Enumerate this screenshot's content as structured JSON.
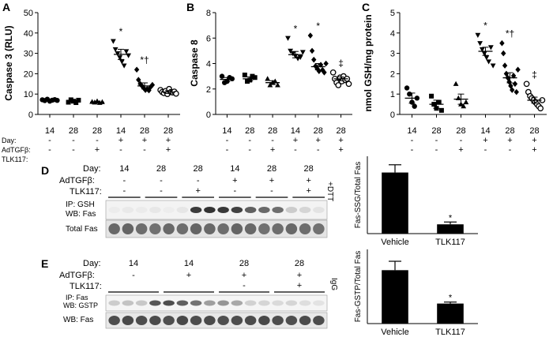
{
  "panels": {
    "A": {
      "letter": "A"
    },
    "B": {
      "letter": "B"
    },
    "C": {
      "letter": "C"
    },
    "D": {
      "letter": "D"
    },
    "E": {
      "letter": "E"
    }
  },
  "design_rows": {
    "day_label": "Day:",
    "adtgf_label": "AdTGFβ:",
    "tlk_label": "TLK117:",
    "days": [
      "14",
      "28",
      "28",
      "14",
      "28",
      "28"
    ],
    "adtgf": [
      "-",
      "-",
      "-",
      "+",
      "+",
      "+"
    ],
    "tlk": [
      "-",
      "-",
      "+",
      "-",
      "-",
      "+"
    ]
  },
  "blot_D": {
    "day_label": "Day:",
    "adtgf_label": "AdTGFβ:",
    "tlk_label": "TLK117:",
    "days": [
      "14",
      "28",
      "28",
      "14",
      "28",
      "28"
    ],
    "adtgf": [
      "-",
      "-",
      "-",
      "+",
      "+",
      "+"
    ],
    "tlk": [
      "-",
      "-",
      "+",
      "-",
      "-",
      "+"
    ],
    "ip_label": "IP: GSH",
    "wb_label": "WB: Fas",
    "total_label": "Total Fas",
    "side_label": "+DTT"
  },
  "blot_E": {
    "day_label": "Day:",
    "adtgf_label": "AdTGFβ:",
    "tlk_label": "TLK117:",
    "days": [
      "14",
      "14",
      "28",
      "28"
    ],
    "adtgf": [
      "-",
      "+",
      "+",
      "+"
    ],
    "tlk": [
      "",
      "",
      "-",
      "+"
    ],
    "ip_label": "IP: Fas",
    "wb_label": "WB: GSTP",
    "wb2_label": "WB: Fas",
    "side_label": "IgG"
  },
  "chart_data": [
    {
      "panel": "A",
      "type": "scatter",
      "ylabel": "Caspase 3 (RLU)",
      "ylim": [
        0,
        50
      ],
      "yticks": [
        "0",
        "10",
        "20",
        "30",
        "40",
        "50"
      ],
      "categories": [
        "14/-/-",
        "28/-/-",
        "28/-/+",
        "14/+/-",
        "28/+/-",
        "28/+/+"
      ],
      "markers": [
        "circle",
        "square",
        "triangle",
        "triangle-down",
        "diamond",
        "circle-open"
      ],
      "means": [
        7,
        6.5,
        6,
        29.5,
        14,
        11
      ],
      "sems": [
        0.5,
        0.6,
        0.5,
        2.5,
        1.5,
        0.7
      ],
      "points": [
        [
          7.2,
          6.8,
          7.5,
          6.5,
          7.0,
          7.3,
          6.9
        ],
        [
          6.0,
          7.2,
          6.5,
          5.8,
          7.0
        ],
        [
          6.2,
          5.9,
          6.5,
          5.7,
          6.1
        ],
        [
          36,
          32,
          30,
          28,
          26,
          24,
          31,
          29
        ],
        [
          22,
          17,
          15,
          14,
          13,
          12,
          12.5,
          11.8,
          13.5,
          14.5
        ],
        [
          12,
          11,
          10.5,
          11.5,
          10,
          12.5,
          11,
          10.8,
          11.2,
          10.2
        ]
      ],
      "annotations": [
        "",
        "",
        "",
        "*",
        "*†",
        ""
      ]
    },
    {
      "panel": "B",
      "type": "scatter",
      "ylabel": "Caspase 8",
      "ylim": [
        0,
        8
      ],
      "yticks": [
        "0",
        "2",
        "4",
        "6",
        "8"
      ],
      "categories": [
        "14/-/-",
        "28/-/-",
        "28/-/+",
        "14/+/-",
        "28/+/-",
        "28/+/+"
      ],
      "markers": [
        "circle",
        "square",
        "triangle",
        "triangle-down",
        "diamond",
        "circle-open"
      ],
      "means": [
        2.75,
        2.8,
        2.5,
        4.7,
        3.75,
        2.8
      ],
      "sems": [
        0.15,
        0.15,
        0.15,
        0.25,
        0.25,
        0.15
      ],
      "points": [
        [
          3.0,
          2.5,
          2.6,
          2.9,
          2.8
        ],
        [
          3.1,
          2.6,
          2.7,
          3.0,
          2.9
        ],
        [
          2.8,
          2.3,
          2.5,
          2.6,
          2.3
        ],
        [
          6.0,
          5.0,
          4.8,
          4.6,
          4.4,
          4.5,
          4.9
        ],
        [
          6.2,
          5.0,
          4.3,
          3.8,
          3.6,
          3.4,
          3.9,
          3.5,
          3.3,
          4.0
        ],
        [
          3.3,
          2.8,
          2.5,
          2.3,
          2.9,
          2.6,
          3.0,
          2.7,
          2.8,
          2.4
        ]
      ],
      "annotations": [
        "",
        "",
        "",
        "*",
        "*",
        "‡"
      ]
    },
    {
      "panel": "C",
      "type": "scatter",
      "ylabel": "nmol GSH/mg protein",
      "ylim": [
        0,
        5
      ],
      "yticks": [
        "0",
        "1",
        "2",
        "3",
        "4",
        "5"
      ],
      "categories": [
        "14/-/-",
        "28/-/-",
        "28/-/+",
        "14/+/-",
        "28/+/-",
        "28/+/+"
      ],
      "markers": [
        "circle",
        "square",
        "triangle",
        "triangle-down",
        "diamond",
        "circle-open"
      ],
      "means": [
        0.8,
        0.5,
        0.75,
        3.1,
        1.8,
        0.7
      ],
      "sems": [
        0.25,
        0.2,
        0.25,
        0.2,
        0.25,
        0.15
      ],
      "points": [
        [
          1.3,
          1.0,
          0.6,
          0.4,
          0.8
        ],
        [
          0.9,
          0.5,
          0.3,
          0.6,
          0.2
        ],
        [
          1.5,
          0.8,
          0.5,
          0.4,
          0.6
        ],
        [
          3.9,
          3.5,
          3.2,
          3.0,
          2.8,
          2.6,
          3.3,
          2.4
        ],
        [
          3.5,
          3.0,
          2.4,
          2.0,
          1.8,
          1.6,
          1.4,
          1.2,
          1.9,
          1.5,
          1.1,
          2.2
        ],
        [
          1.5,
          1.1,
          0.9,
          0.8,
          0.7,
          0.6,
          0.5,
          0.4,
          0.3,
          0.7
        ]
      ],
      "annotations": [
        "",
        "",
        "",
        "*",
        "*†",
        "‡"
      ]
    },
    {
      "panel": "D-bar",
      "type": "bar",
      "ylabel": "Fas-SSG/Total Fas",
      "ylim": [
        0,
        1.0
      ],
      "categories": [
        "Vehicle",
        "TLK117"
      ],
      "values": [
        0.79,
        0.12
      ],
      "errors": [
        0.1,
        0.03
      ],
      "annotations": [
        "",
        "*"
      ]
    },
    {
      "panel": "E-bar",
      "type": "bar",
      "ylabel": "Fas-GSTP/Total Fas",
      "ylim": [
        0,
        1.0
      ],
      "categories": [
        "Vehicle",
        "TLK117"
      ],
      "values": [
        0.72,
        0.27
      ],
      "errors": [
        0.12,
        0.02
      ],
      "annotations": [
        "",
        "*"
      ]
    }
  ]
}
